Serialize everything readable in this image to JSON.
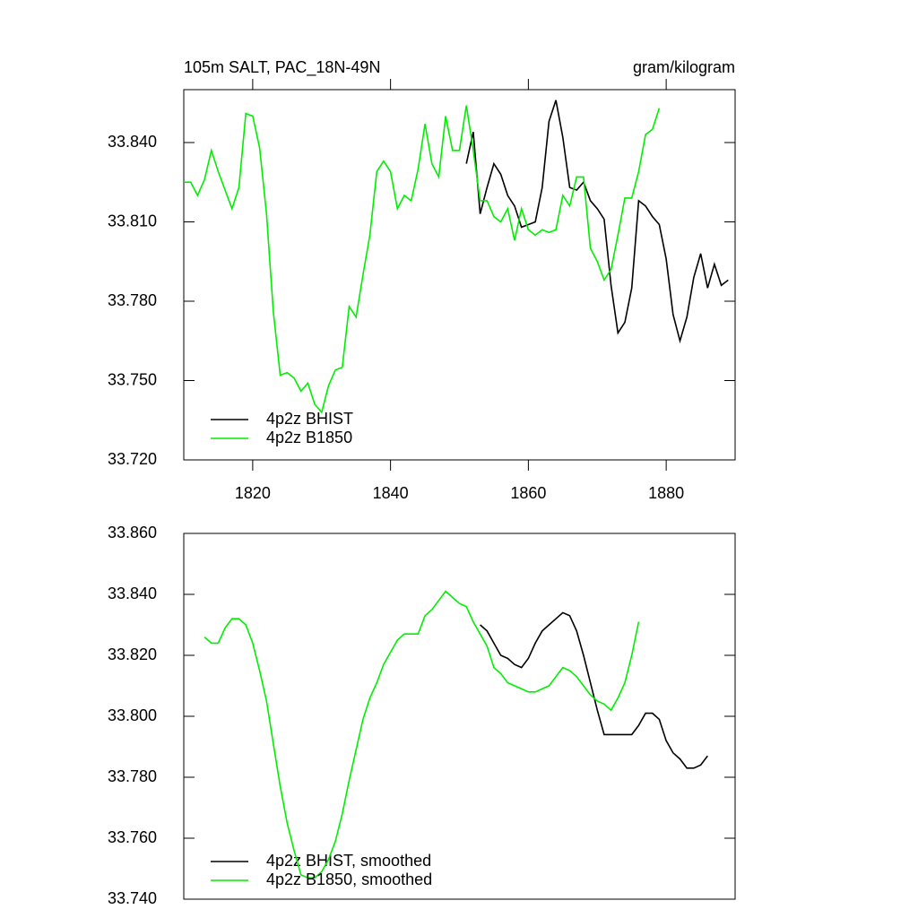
{
  "chart_data": [
    {
      "type": "line",
      "title": "105m SALT, PAC_18N-49N",
      "units": "gram/kilogram",
      "xlim": [
        1810,
        1890
      ],
      "xticks": [
        1820,
        1840,
        1860,
        1880
      ],
      "ylim": [
        33.72,
        33.86
      ],
      "yticks": [
        {
          "value": 33.72,
          "label": "33.720"
        },
        {
          "value": 33.75,
          "label": "33.750"
        },
        {
          "value": 33.78,
          "label": "33.780"
        },
        {
          "value": 33.81,
          "label": "33.810"
        },
        {
          "value": 33.84,
          "label": "33.840"
        }
      ],
      "series": [
        {
          "name": "4p2z BHIST",
          "color": "#000000",
          "x": [
            1851,
            1852,
            1853,
            1854,
            1855,
            1856,
            1857,
            1858,
            1859,
            1860,
            1861,
            1862,
            1863,
            1864,
            1865,
            1866,
            1867,
            1868,
            1869,
            1870,
            1871,
            1872,
            1873,
            1874,
            1875,
            1876,
            1877,
            1878,
            1879,
            1880,
            1881,
            1882,
            1883,
            1884,
            1885,
            1886,
            1887,
            1888,
            1889
          ],
          "values": [
            33.832,
            33.844,
            33.813,
            33.823,
            33.832,
            33.828,
            33.82,
            33.816,
            33.808,
            33.809,
            33.81,
            33.823,
            33.848,
            33.856,
            33.842,
            33.823,
            33.822,
            33.825,
            33.818,
            33.815,
            33.811,
            33.786,
            33.768,
            33.772,
            33.785,
            33.818,
            33.816,
            33.812,
            33.809,
            33.796,
            33.775,
            33.765,
            33.774,
            33.789,
            33.798,
            33.785,
            33.794,
            33.786,
            33.788
          ]
        },
        {
          "name": "4p2z B1850",
          "color": "#00ee00",
          "x": [
            1810,
            1811,
            1812,
            1813,
            1814,
            1815,
            1816,
            1817,
            1818,
            1819,
            1820,
            1821,
            1822,
            1823,
            1824,
            1825,
            1826,
            1827,
            1828,
            1829,
            1830,
            1831,
            1832,
            1833,
            1834,
            1835,
            1836,
            1837,
            1838,
            1839,
            1840,
            1841,
            1842,
            1843,
            1844,
            1845,
            1846,
            1847,
            1848,
            1849,
            1850,
            1851,
            1852,
            1853,
            1854,
            1855,
            1856,
            1857,
            1858,
            1859,
            1860,
            1861,
            1862,
            1863,
            1864,
            1865,
            1866,
            1867,
            1868,
            1869,
            1870,
            1871,
            1872,
            1873,
            1874,
            1875,
            1876,
            1877,
            1878,
            1879
          ],
          "values": [
            33.825,
            33.825,
            33.82,
            33.826,
            33.837,
            33.829,
            33.822,
            33.815,
            33.823,
            33.851,
            33.85,
            33.838,
            33.813,
            33.776,
            33.752,
            33.753,
            33.751,
            33.746,
            33.749,
            33.741,
            33.738,
            33.748,
            33.754,
            33.755,
            33.778,
            33.774,
            33.79,
            33.805,
            33.829,
            33.833,
            33.829,
            33.815,
            33.82,
            33.818,
            33.83,
            33.847,
            33.832,
            33.827,
            33.85,
            33.837,
            33.837,
            33.854,
            33.837,
            33.818,
            33.818,
            33.812,
            33.81,
            33.815,
            33.803,
            33.815,
            33.807,
            33.805,
            33.807,
            33.806,
            33.807,
            33.82,
            33.816,
            33.827,
            33.827,
            33.8,
            33.795,
            33.788,
            33.792,
            33.805,
            33.819,
            33.819,
            33.829,
            33.843,
            33.845,
            33.853
          ]
        }
      ]
    },
    {
      "type": "line",
      "xlim": [
        1810,
        1890
      ],
      "ylim": [
        33.74,
        33.86
      ],
      "yticks": [
        {
          "value": 33.74,
          "label": "33.740"
        },
        {
          "value": 33.76,
          "label": "33.760"
        },
        {
          "value": 33.78,
          "label": "33.780"
        },
        {
          "value": 33.8,
          "label": "33.800"
        },
        {
          "value": 33.82,
          "label": "33.820"
        },
        {
          "value": 33.84,
          "label": "33.840"
        },
        {
          "value": 33.86,
          "label": "33.860"
        }
      ],
      "series": [
        {
          "name": "4p2z BHIST, smoothed",
          "color": "#000000",
          "x": [
            1853,
            1854,
            1855,
            1856,
            1857,
            1858,
            1859,
            1860,
            1861,
            1862,
            1863,
            1864,
            1865,
            1866,
            1867,
            1868,
            1869,
            1870,
            1871,
            1872,
            1873,
            1874,
            1875,
            1876,
            1877,
            1878,
            1879,
            1880,
            1881,
            1882,
            1883,
            1884,
            1885,
            1886
          ],
          "values": [
            33.83,
            33.828,
            33.824,
            33.82,
            33.819,
            33.817,
            33.816,
            33.819,
            33.824,
            33.828,
            33.83,
            33.832,
            33.834,
            33.833,
            33.828,
            33.82,
            33.811,
            33.802,
            33.794,
            33.794,
            33.794,
            33.794,
            33.794,
            33.797,
            33.801,
            33.801,
            33.799,
            33.792,
            33.788,
            33.786,
            33.783,
            33.783,
            33.784,
            33.787
          ]
        },
        {
          "name": "4p2z B1850, smoothed",
          "color": "#00ee00",
          "x": [
            1813,
            1814,
            1815,
            1816,
            1817,
            1818,
            1819,
            1820,
            1821,
            1822,
            1823,
            1824,
            1825,
            1826,
            1827,
            1828,
            1829,
            1830,
            1831,
            1832,
            1833,
            1834,
            1835,
            1836,
            1837,
            1838,
            1839,
            1840,
            1841,
            1842,
            1843,
            1844,
            1845,
            1846,
            1847,
            1848,
            1849,
            1850,
            1851,
            1852,
            1853,
            1854,
            1855,
            1856,
            1857,
            1858,
            1859,
            1860,
            1861,
            1862,
            1863,
            1864,
            1865,
            1866,
            1867,
            1868,
            1869,
            1870,
            1871,
            1872,
            1873,
            1874,
            1875,
            1876
          ],
          "values": [
            33.826,
            33.824,
            33.824,
            33.829,
            33.832,
            33.832,
            33.83,
            33.824,
            33.815,
            33.805,
            33.791,
            33.777,
            33.765,
            33.756,
            33.748,
            33.747,
            33.747,
            33.749,
            33.753,
            33.759,
            33.768,
            33.779,
            33.789,
            33.799,
            33.806,
            33.811,
            33.817,
            33.821,
            33.825,
            33.827,
            33.827,
            33.827,
            33.833,
            33.835,
            33.838,
            33.841,
            33.839,
            33.837,
            33.836,
            33.831,
            33.827,
            33.823,
            33.816,
            33.814,
            33.811,
            33.81,
            33.809,
            33.808,
            33.808,
            33.809,
            33.81,
            33.813,
            33.816,
            33.815,
            33.813,
            33.81,
            33.807,
            33.805,
            33.804,
            33.802,
            33.806,
            33.811,
            33.82,
            33.831
          ]
        }
      ]
    }
  ]
}
